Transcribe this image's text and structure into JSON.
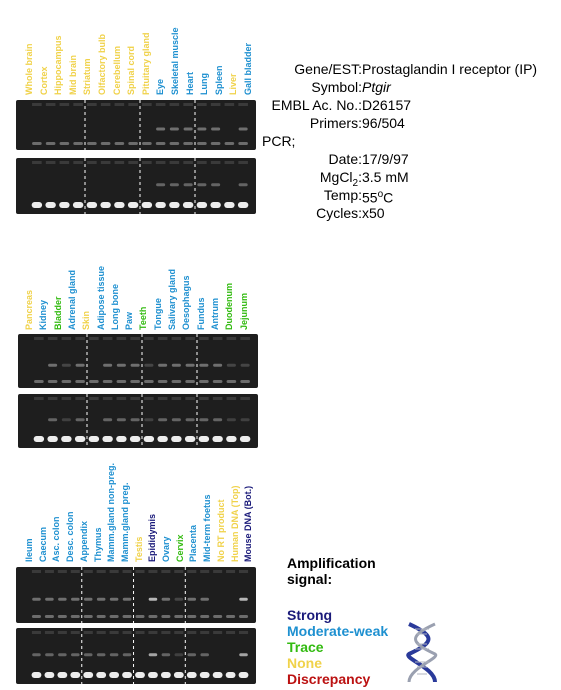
{
  "colors": {
    "strong": "#1a1a7a",
    "moderate_weak": "#1e90d0",
    "trace": "#33bb11",
    "none": "#f0d24a",
    "discrepancy": "#bb1111"
  },
  "info": {
    "gene_label": "Gene/EST:",
    "gene_value": "Prostaglandin I receptor (IP)",
    "symbol_label": "Symbol:",
    "symbol_value": "Ptgir",
    "embl_label": "EMBL Ac. No.:",
    "embl_value": "D26157",
    "primers_label": "Primers:",
    "primers_value": "96/504",
    "pcr_label": "PCR;",
    "date_label": "Date:",
    "date_value": "17/9/97",
    "mgcl_label": "MgCl",
    "mgcl_sub": "2",
    "mgcl_colon": ":",
    "mgcl_value": "3.5 mM",
    "temp_label": "Temp:",
    "temp_value": "55",
    "temp_sup": "o",
    "temp_unit": "C",
    "cycles_label": "Cycles:",
    "cycles_value": "x50"
  },
  "legend": {
    "title_line1": "Amplification",
    "title_line2": "signal:",
    "strong": "Strong",
    "moderate_weak": "Moderate-weak",
    "trace": "Trace",
    "none": "None",
    "discrepancy": "Discrepancy"
  },
  "panels": [
    {
      "lanes": [
        {
          "label": "Whole brain",
          "signal": "none"
        },
        {
          "label": "Cortex",
          "signal": "none"
        },
        {
          "label": "Hippocampus",
          "signal": "none"
        },
        {
          "label": "Mid brain",
          "signal": "none"
        },
        {
          "label": "Striatum",
          "signal": "none"
        },
        {
          "label": "Olfactory bulb",
          "signal": "none"
        },
        {
          "label": "Cerebellum",
          "signal": "none"
        },
        {
          "label": "Spinal cord",
          "signal": "none"
        },
        {
          "label": "Pituitary gland",
          "signal": "none"
        },
        {
          "label": "Eye",
          "signal": "moderate_weak"
        },
        {
          "label": "Skeletal muscle",
          "signal": "moderate_weak"
        },
        {
          "label": "Heart",
          "signal": "moderate_weak"
        },
        {
          "label": "Lung",
          "signal": "moderate_weak"
        },
        {
          "label": "Spleen",
          "signal": "moderate_weak"
        },
        {
          "label": "Liver",
          "signal": "none"
        },
        {
          "label": "Gall bladder",
          "signal": "moderate_weak"
        }
      ]
    },
    {
      "lanes": [
        {
          "label": "Pancreas",
          "signal": "none"
        },
        {
          "label": "Kidney",
          "signal": "moderate_weak"
        },
        {
          "label": "Bladder",
          "signal": "trace"
        },
        {
          "label": "Adrenal gland",
          "signal": "moderate_weak"
        },
        {
          "label": "Skin",
          "signal": "none"
        },
        {
          "label": "Adipose tissue",
          "signal": "moderate_weak"
        },
        {
          "label": "Long bone",
          "signal": "moderate_weak"
        },
        {
          "label": "Paw",
          "signal": "moderate_weak"
        },
        {
          "label": "Teeth",
          "signal": "trace"
        },
        {
          "label": "Tongue",
          "signal": "moderate_weak"
        },
        {
          "label": "Salivary gland",
          "signal": "moderate_weak"
        },
        {
          "label": "Oesophagus",
          "signal": "moderate_weak"
        },
        {
          "label": "Fundus",
          "signal": "moderate_weak"
        },
        {
          "label": "Antrum",
          "signal": "moderate_weak"
        },
        {
          "label": "Duodenum",
          "signal": "trace"
        },
        {
          "label": "Jejunum",
          "signal": "trace"
        }
      ]
    },
    {
      "lanes": [
        {
          "label": "Ileum",
          "signal": "moderate_weak"
        },
        {
          "label": "Caecum",
          "signal": "moderate_weak"
        },
        {
          "label": "Asc. colon",
          "signal": "moderate_weak"
        },
        {
          "label": "Desc. colon",
          "signal": "moderate_weak"
        },
        {
          "label": "Appendix",
          "signal": "moderate_weak"
        },
        {
          "label": "Thymus",
          "signal": "moderate_weak"
        },
        {
          "label": "Mamm.gland non-preg.",
          "signal": "moderate_weak"
        },
        {
          "label": "Mamm.gland preg.",
          "signal": "moderate_weak"
        },
        {
          "label": "Testis",
          "signal": "none"
        },
        {
          "label": "Epididymis",
          "signal": "strong"
        },
        {
          "label": "Ovary",
          "signal": "moderate_weak"
        },
        {
          "label": "Cervix",
          "signal": "trace"
        },
        {
          "label": "Placenta",
          "signal": "moderate_weak"
        },
        {
          "label": "Mid-term foetus",
          "signal": "moderate_weak"
        },
        {
          "label": "No RT product",
          "signal": "none"
        },
        {
          "label": "Human DNA (Top)",
          "signal": "none"
        },
        {
          "label": "Mouse DNA (Bot.)",
          "signal": "strong"
        }
      ]
    }
  ]
}
